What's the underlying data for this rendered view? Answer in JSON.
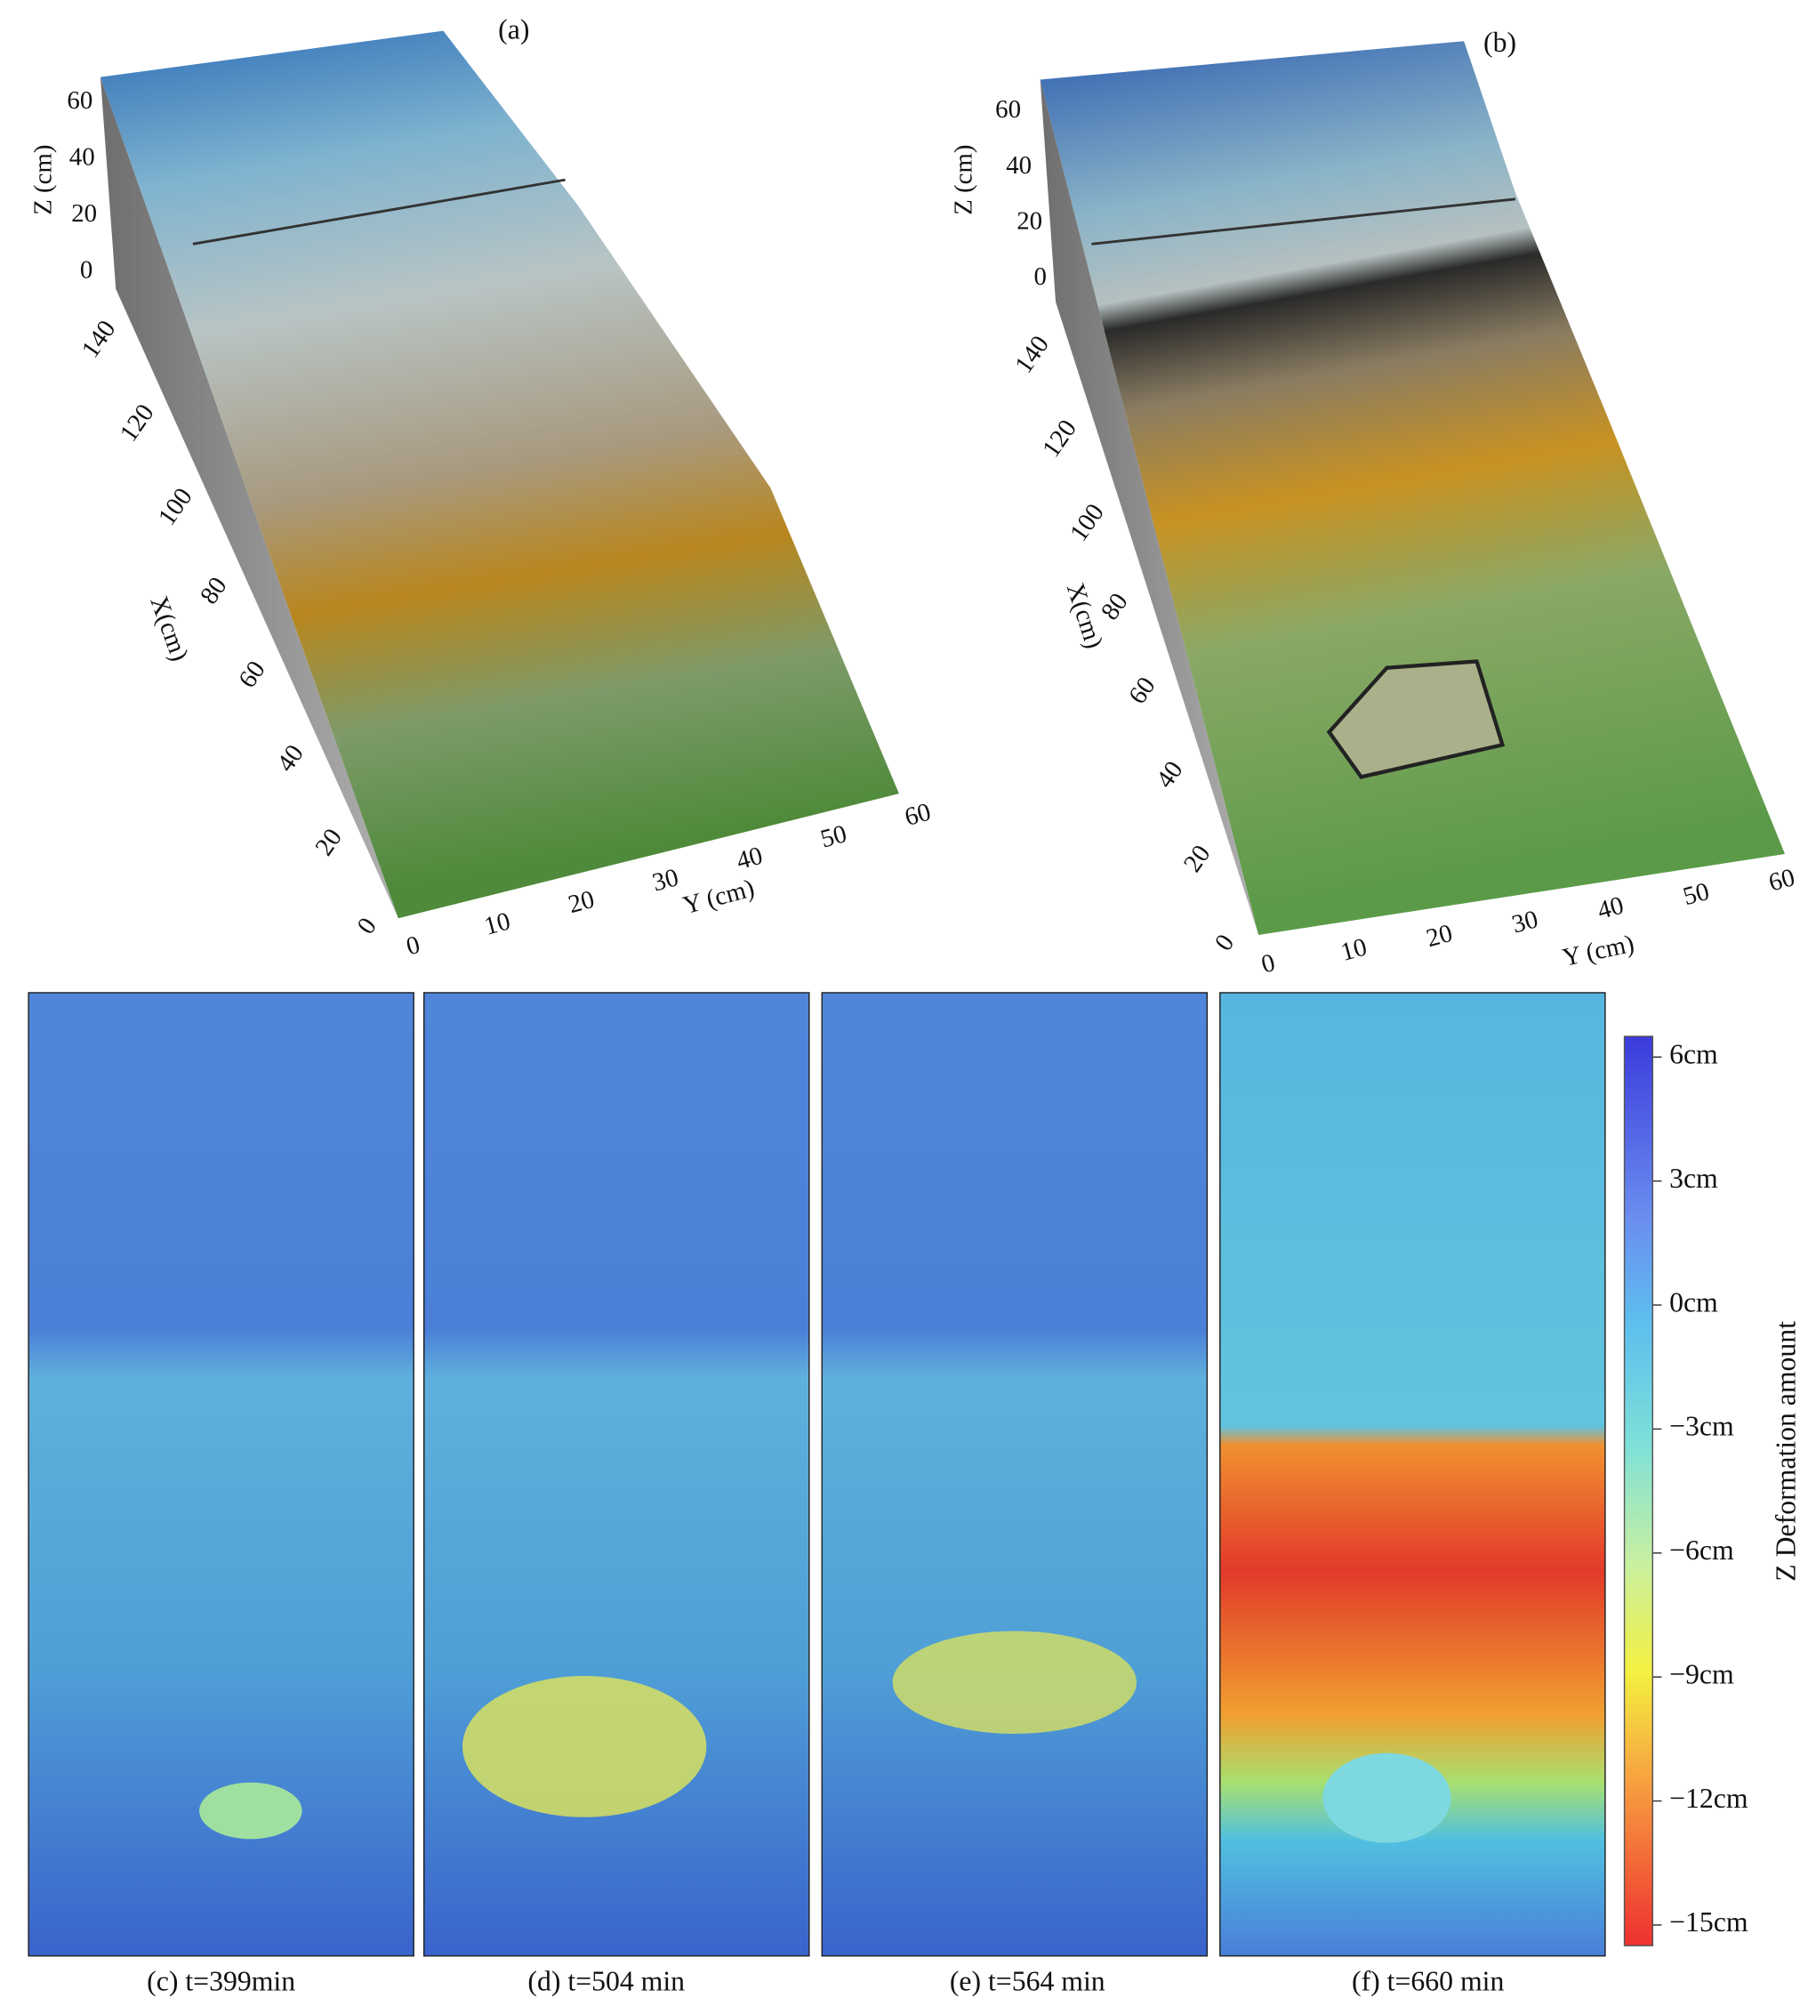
{
  "panels": [
    {
      "label": "(a)",
      "zlabel": "Z (cm)",
      "xlabel": "X(cm)",
      "ylabel": "Y (cm)",
      "zticks": [
        0,
        20,
        40,
        60
      ],
      "xticks": [
        0,
        20,
        40,
        60,
        80,
        100,
        120,
        140
      ],
      "yticks": [
        0,
        10,
        20,
        30,
        40,
        50,
        60
      ]
    },
    {
      "label": "(b)",
      "zlabel": "Z (cm)",
      "xlabel": "X(cm)",
      "ylabel": "Y (cm)",
      "zticks": [
        0,
        20,
        40,
        60
      ],
      "xticks": [
        0,
        20,
        40,
        60,
        80,
        100,
        120,
        140
      ],
      "yticks": [
        0,
        10,
        20,
        30,
        40,
        50,
        60
      ]
    }
  ],
  "maps": [
    {
      "caption": "(c) t=399min"
    },
    {
      "caption": "(d) t=504 min"
    },
    {
      "caption": "(e) t=564 min"
    },
    {
      "caption": "(f) t=660 min"
    }
  ],
  "colorbar": {
    "label": "Z Deformation amount",
    "lim": [
      -15.5,
      6.5
    ],
    "ticks": [
      {
        "value": 6,
        "label": "6cm"
      },
      {
        "value": 3,
        "label": "3cm"
      },
      {
        "value": 0,
        "label": "0cm"
      },
      {
        "value": -3,
        "label": "−3cm"
      },
      {
        "value": -6,
        "label": "−6cm"
      },
      {
        "value": -9,
        "label": "−9cm"
      },
      {
        "value": -12,
        "label": "−12cm"
      },
      {
        "value": -15,
        "label": "−15cm"
      }
    ]
  }
}
